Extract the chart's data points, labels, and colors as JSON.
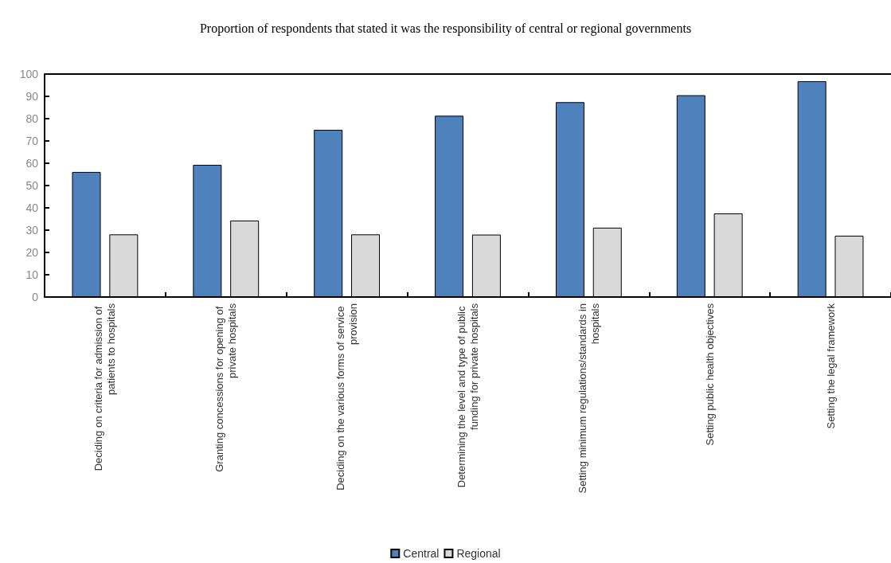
{
  "chart_data": {
    "type": "bar",
    "title": "Proportion of respondents that stated it was the responsibility of central or regional governments",
    "categories": [
      "Deciding on criteria for admission of patients to hospitals",
      "Granting concessions for opening of private hospitals",
      "Deciding on the various forms of service provision",
      "Determining the level and type of public funding for private hospitals",
      "Setting minimum regulations/standards in hospitals",
      "Setting public health objectives",
      "Setting the legal framework"
    ],
    "series": [
      {
        "name": "Central",
        "color": "#4f81bd",
        "values": [
          56.1,
          59.3,
          75.0,
          81.3,
          87.4,
          90.5,
          96.8
        ]
      },
      {
        "name": "Regional",
        "color": "#d9d9d9",
        "values": [
          28.1,
          34.3,
          28.1,
          28.0,
          31.1,
          37.5,
          27.5
        ]
      }
    ],
    "ylim": [
      0,
      100
    ],
    "yticks": [
      0,
      10,
      20,
      30,
      40,
      50,
      60,
      70,
      80,
      90,
      100
    ],
    "grid": false,
    "legend": "bottom"
  }
}
